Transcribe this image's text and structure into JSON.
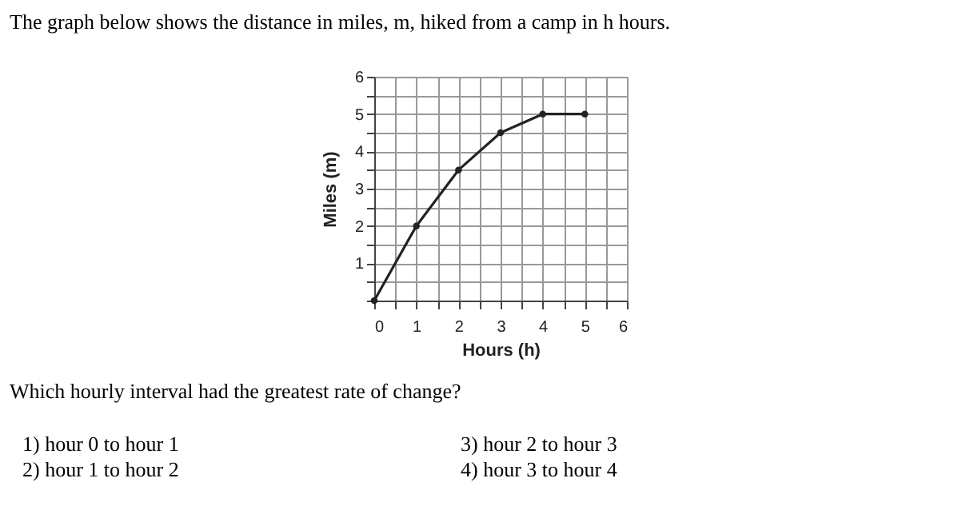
{
  "chart_data": {
    "type": "line",
    "title": "The graph below shows the distance in miles, m, hiked from a camp in h hours.",
    "xlabel": "Hours (h)",
    "ylabel": "Miles (m)",
    "x": [
      0,
      1,
      2,
      3,
      4,
      5
    ],
    "series": [
      {
        "color": "#222222",
        "values": [
          0,
          2,
          3.5,
          4.5,
          5,
          5
        ]
      }
    ],
    "xlim": [
      0,
      6
    ],
    "ylim": [
      0,
      6
    ],
    "xticks": [
      0,
      {
        "value": 0.5,
        "label": null
      },
      1,
      {
        "value": 1.5,
        "label": null
      },
      2,
      {
        "value": 2.5,
        "label": null
      },
      3,
      {
        "value": 3.5,
        "label": null
      },
      4,
      {
        "value": 4.5,
        "label": null
      },
      5,
      {
        "value": 5.5,
        "label": null
      },
      6
    ],
    "yticks": [
      {
        "value": 0,
        "label": null
      },
      {
        "value": 0.5,
        "label": null
      },
      1,
      {
        "value": 1.5,
        "label": null
      },
      2,
      {
        "value": 2.5,
        "label": null
      },
      3,
      {
        "value": 3.5,
        "label": null
      },
      4,
      {
        "value": 4.5,
        "label": null
      },
      5,
      {
        "value": 5.5,
        "label": null
      },
      6
    ],
    "grid": true,
    "marker": "circle",
    "line_style": "solid",
    "annotations": [
      "Which hourly interval had the greatest rate of change?",
      "1)  hour 0 to hour 1",
      "2)  hour 1 to hour 2",
      "3)  hour 2 to hour 3",
      "4)  hour 3 to hour 4"
    ]
  }
}
